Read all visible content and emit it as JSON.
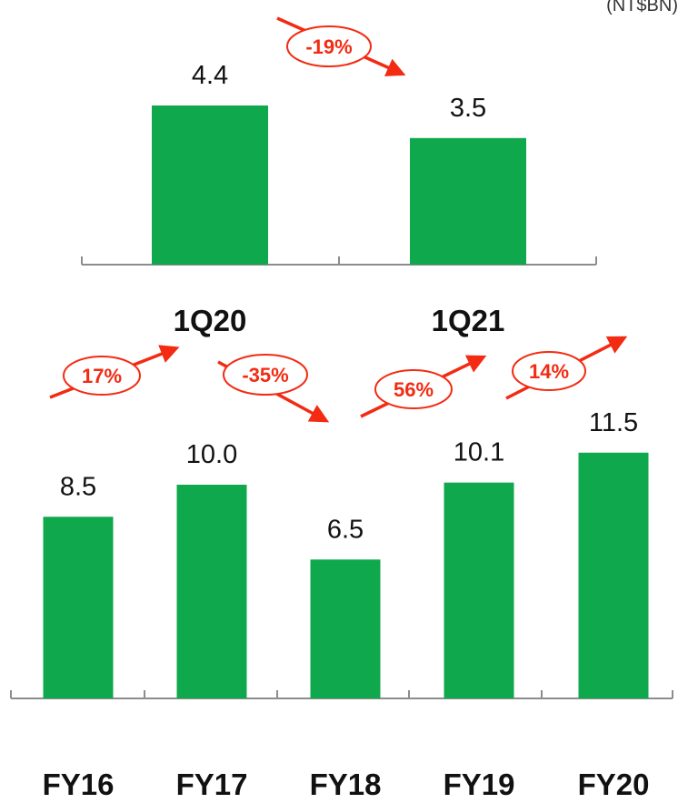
{
  "unit_label": "(NT$BN)",
  "colors": {
    "bar": "#10A84C",
    "accent": "#F22B12",
    "axis": "#8C8C8C"
  },
  "chart_data": [
    {
      "type": "bar",
      "categories": [
        "1Q20",
        "1Q21"
      ],
      "values": [
        4.4,
        3.5
      ],
      "value_labels": [
        "4.4",
        "3.5"
      ],
      "changes": [
        {
          "label": "-19%",
          "from": 0,
          "to": 1,
          "direction": "down"
        }
      ]
    },
    {
      "type": "bar",
      "categories": [
        "FY16",
        "FY17",
        "FY18",
        "FY19",
        "FY20"
      ],
      "values": [
        8.5,
        10.0,
        6.5,
        10.1,
        11.5
      ],
      "value_labels": [
        "8.5",
        "10.0",
        "6.5",
        "10.1",
        "11.5"
      ],
      "changes": [
        {
          "label": "17%",
          "from": 0,
          "to": 1,
          "direction": "up"
        },
        {
          "label": "-35%",
          "from": 1,
          "to": 2,
          "direction": "down"
        },
        {
          "label": "56%",
          "from": 2,
          "to": 3,
          "direction": "up"
        },
        {
          "label": "14%",
          "from": 3,
          "to": 4,
          "direction": "up"
        }
      ]
    }
  ]
}
